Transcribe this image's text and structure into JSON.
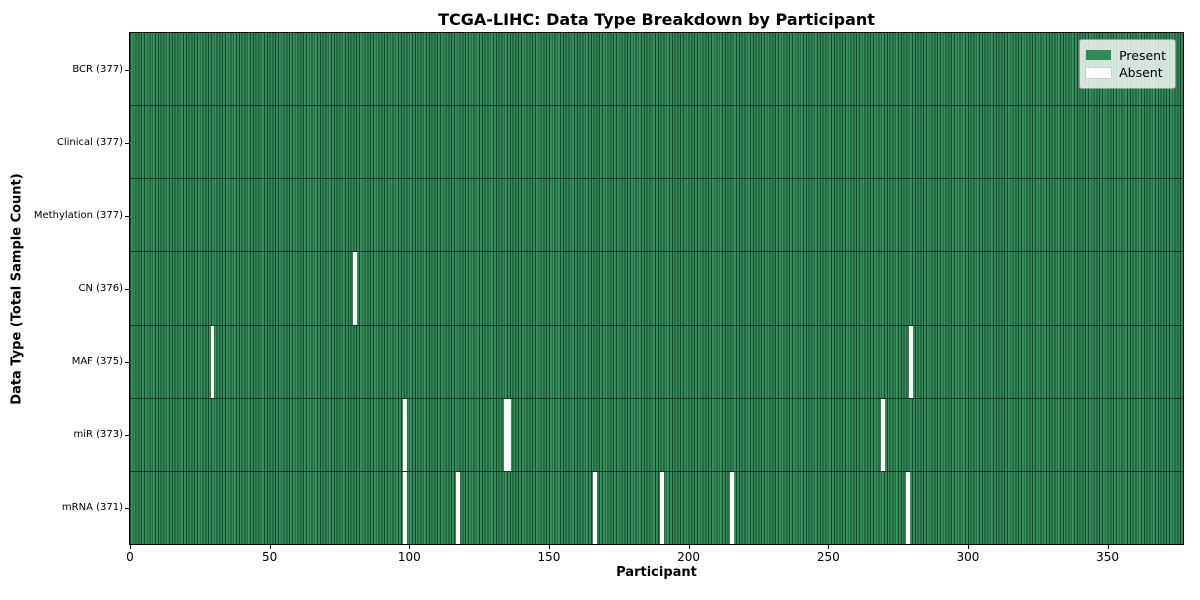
{
  "chart_data": {
    "type": "heatmap",
    "title": "TCGA-LIHC: Data Type Breakdown by Participant",
    "xlabel": "Participant",
    "ylabel": "Data Type (Total Sample Count)",
    "xlim": [
      0,
      377
    ],
    "n_participants": 377,
    "x_ticks": [
      0,
      50,
      100,
      150,
      200,
      250,
      300,
      350
    ],
    "grid": false,
    "legend_position": "upper-right",
    "legend": [
      {
        "label": "Present",
        "color": "#2e8b57"
      },
      {
        "label": "Absent",
        "color": "#ffffff"
      }
    ],
    "rows": [
      {
        "data_type": "BCR",
        "label": "BCR (377)",
        "present_count": 377,
        "absent_participants": []
      },
      {
        "data_type": "Clinical",
        "label": "Clinical (377)",
        "present_count": 377,
        "absent_participants": []
      },
      {
        "data_type": "Methylation",
        "label": "Methylation (377)",
        "present_count": 377,
        "absent_participants": []
      },
      {
        "data_type": "CN",
        "label": "CN (376)",
        "present_count": 376,
        "absent_participants": [
          80
        ]
      },
      {
        "data_type": "MAF",
        "label": "MAF (375)",
        "present_count": 375,
        "absent_participants": [
          29,
          279
        ]
      },
      {
        "data_type": "miR",
        "label": "miR (373)",
        "present_count": 373,
        "absent_participants": [
          98,
          134,
          135,
          269
        ]
      },
      {
        "data_type": "mRNA",
        "label": "mRNA (371)",
        "present_count": 371,
        "absent_participants": [
          98,
          117,
          166,
          190,
          215,
          278
        ]
      }
    ],
    "colors": {
      "present": "#2e8b57",
      "absent": "#ffffff",
      "cell_edge": "rgba(0,0,0,0.48)",
      "spine": "#000000",
      "figure_bg": "#ffffff"
    }
  }
}
